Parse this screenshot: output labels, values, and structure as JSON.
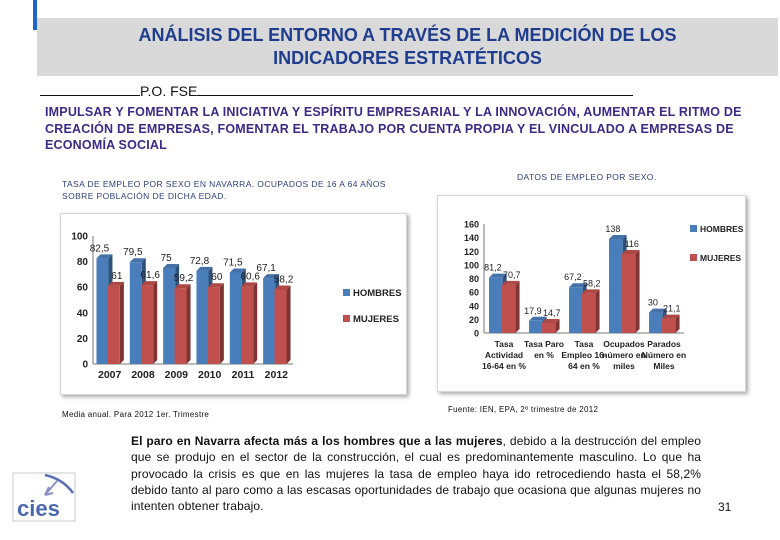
{
  "header": {
    "title_line1": "ANÁLISIS DEL ENTORNO A TRAVÉS DE LA MEDICIÓN DE LOS",
    "title_line2": "INDICADORES ESTRATÉTICOS",
    "program": "P.O. FSE"
  },
  "objective": "IMPULSAR Y FOMENTAR LA INICIATIVA Y ESPÍRITU EMPRESARIAL Y LA INNOVACIÓN, AUMENTAR EL RITMO DE CREACIÓN DE EMPRESAS, FOMENTAR EL TRABAJO POR CUENTA PROPIA Y EL VINCULADO A EMPRESAS DE ECONOMÍA SOCIAL",
  "left_caption": "TASA DE EMPLEO POR SEXO EN NAVARRA. OCUPADOS DE 16 A 64 AÑOS SOBRE POBLACIÓN DE DICHA EDAD.",
  "right_caption": "DATOS DE EMPLEO POR SEXO.",
  "left_source": "Media anual. Para 2012 1er. Trimestre",
  "right_source": "Fuente: IEN, EPA, 2º trimestre de 2012",
  "paragraph": {
    "bold": "El paro en Navarra afecta más a los hombres que a las mujeres",
    "rest": ", debido a la destrucción del empleo que se produjo en el sector de la construcción, el cual es predominantemente masculino. Lo que ha provocado la crisis es que en las mujeres la tasa de empleo haya ido retrocediendo hasta el 58,2% debido tanto al paro como a las escasas oportunidades de trabajo que ocasiona que algunas mujeres no intenten obtener trabajo."
  },
  "page_number": "31",
  "logo_text": "cies",
  "colors": {
    "hombres": "#4a7ebb",
    "mujeres": "#c0504d",
    "title": "#1f3d8f",
    "objective": "#3b2a86"
  },
  "chart_data": [
    {
      "type": "bar",
      "categories": [
        "2007",
        "2008",
        "2009",
        "2010",
        "2011",
        "2012"
      ],
      "series": [
        {
          "name": "HOMBRES",
          "values": [
            82.5,
            79.5,
            75,
            72.8,
            71.5,
            67.1
          ],
          "labels": [
            "82,5",
            "79,5",
            "75",
            "72,8",
            "71,5",
            "67,1"
          ]
        },
        {
          "name": "MUJERES",
          "values": [
            61,
            61.6,
            59.2,
            60,
            60.6,
            58.2
          ],
          "labels": [
            "61",
            "61,6",
            "59,2",
            "60",
            "60,6",
            "58,2"
          ]
        }
      ],
      "ylim": [
        0,
        100
      ],
      "yticks": [
        "0",
        "20",
        "40",
        "60",
        "80",
        "100"
      ],
      "legend": "right",
      "grid": false
    },
    {
      "type": "bar",
      "categories": [
        "Tasa Actividad 16-64 en %",
        "Tasa Paro en %",
        "Tasa Empleo 16-64 en %",
        "Ocupados número en miles",
        "Parados Número en Miles"
      ],
      "category_lines": [
        [
          "Tasa",
          "Actividad",
          "16-64 en %"
        ],
        [
          "Tasa Paro",
          "en %"
        ],
        [
          "Tasa",
          "Empleo 16-",
          "64 en %"
        ],
        [
          "Ocupados",
          "número en",
          "miles"
        ],
        [
          "Parados",
          "Número en",
          "Miles"
        ]
      ],
      "series": [
        {
          "name": "HOMBRES",
          "values": [
            81.2,
            17.9,
            67.2,
            138,
            30
          ],
          "labels": [
            "81,2",
            "17,9",
            "67,2",
            "138",
            "30"
          ]
        },
        {
          "name": "MUJERES",
          "values": [
            70.7,
            14.7,
            58.2,
            116,
            21.1
          ],
          "labels": [
            "70,7",
            "14,7",
            "58,2",
            "116",
            "21,1"
          ]
        }
      ],
      "ylim": [
        0,
        160
      ],
      "yticks": [
        "0",
        "20",
        "40",
        "60",
        "80",
        "100",
        "120",
        "140",
        "160"
      ],
      "legend": "right",
      "grid": false
    }
  ]
}
